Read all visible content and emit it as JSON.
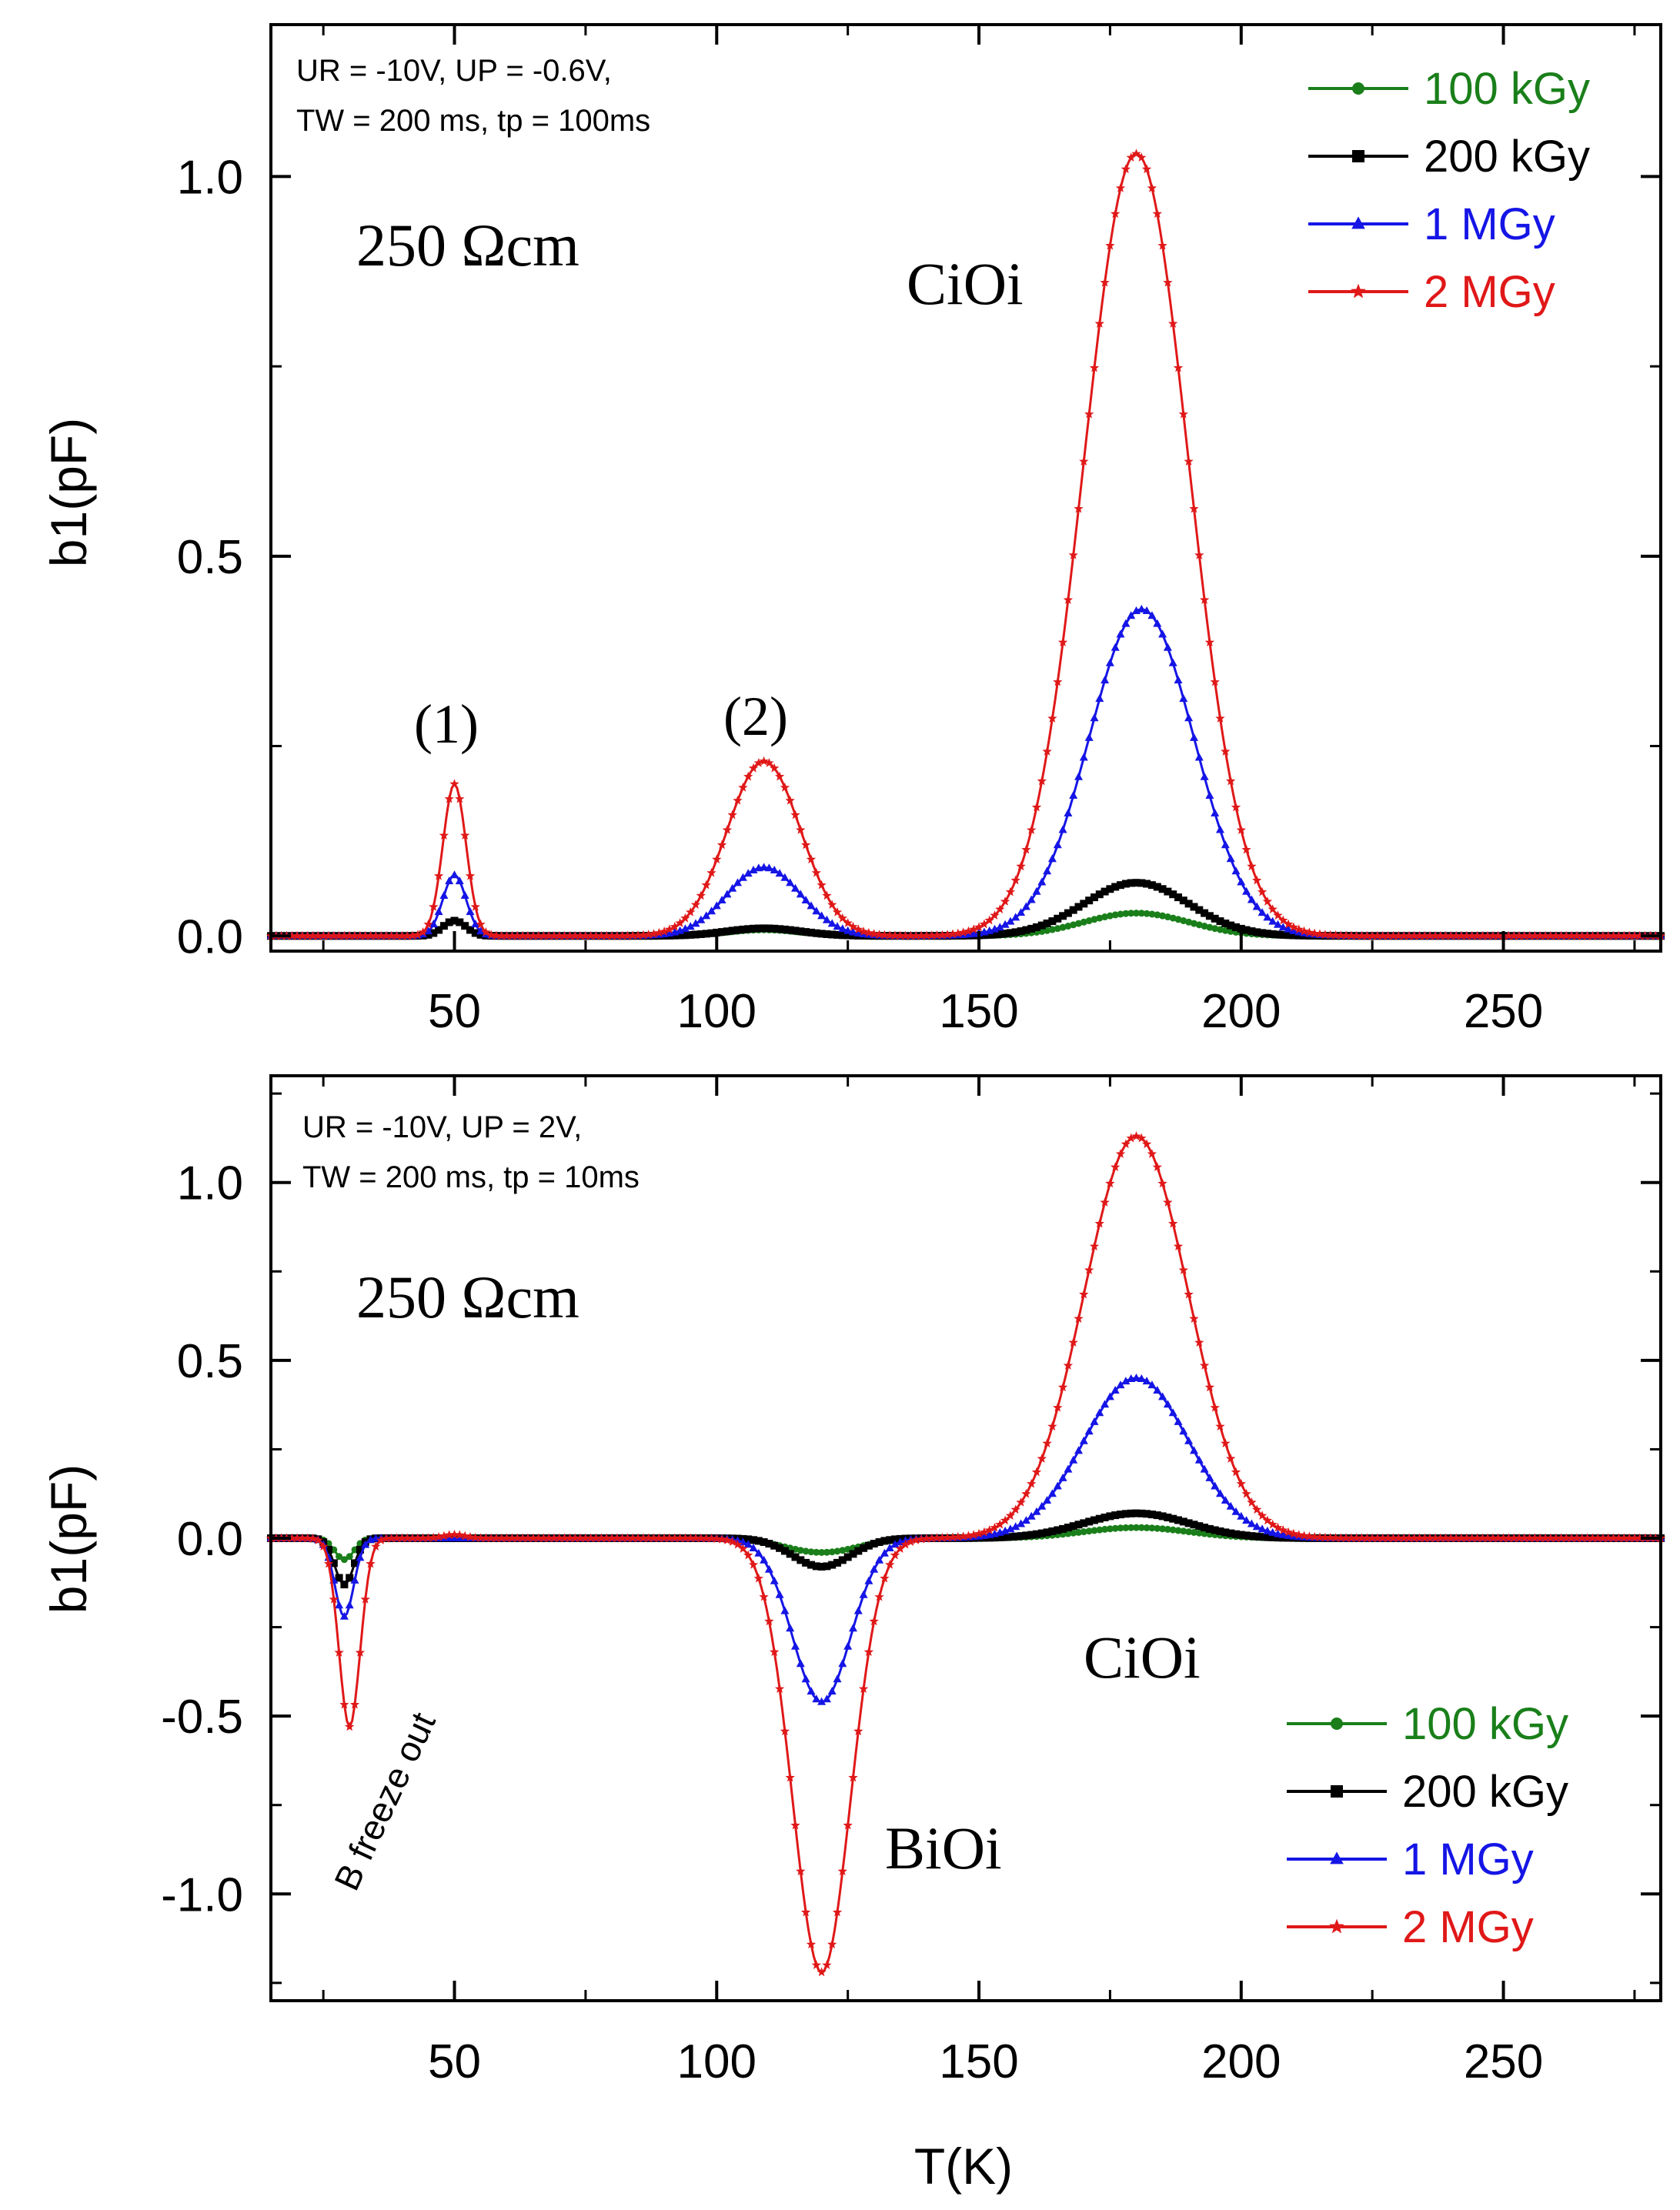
{
  "chart_data": [
    {
      "type": "line",
      "title": "",
      "xlabel": "",
      "ylabel": "b1(pF)",
      "xlim": [
        15,
        280
      ],
      "ylim": [
        -0.02,
        1.2
      ],
      "xticks": [
        50,
        100,
        150,
        200,
        250
      ],
      "xtick_labels": [
        "50",
        "100",
        "150",
        "200",
        "250"
      ],
      "yticks": [
        0.0,
        0.5,
        1.0
      ],
      "ytick_labels": [
        "0.0",
        "0.5",
        "1.0"
      ],
      "conditions": [
        "UR = -10V, UP = -0.6V,",
        "TW = 200 ms, tp = 100ms"
      ],
      "annotations": {
        "resistivity": "250 Ωcm",
        "peak_1": "(1)",
        "peak_2": "(2)",
        "cioi": "CiOi"
      },
      "legend_position": "top-right",
      "series": [
        {
          "name": "100 kGy",
          "color": "#1a7f1a",
          "marker": "circle",
          "peaks": [
            {
              "center": 50,
              "amp": 0.02,
              "sigma": 2.2
            },
            {
              "center": 109,
              "amp": 0.008,
              "sigma": 7
            },
            {
              "center": 180,
              "amp": 0.03,
              "sigma": 10
            }
          ]
        },
        {
          "name": "200 kGy",
          "color": "#000000",
          "marker": "square",
          "peaks": [
            {
              "center": 50,
              "amp": 0.02,
              "sigma": 2.2
            },
            {
              "center": 109,
              "amp": 0.01,
              "sigma": 7
            },
            {
              "center": 180,
              "amp": 0.07,
              "sigma": 10
            }
          ]
        },
        {
          "name": "1 MGy",
          "color": "#1515e6",
          "marker": "triangle",
          "peaks": [
            {
              "center": 50,
              "amp": 0.08,
              "sigma": 2.2
            },
            {
              "center": 109,
              "amp": 0.09,
              "sigma": 7
            },
            {
              "center": 181,
              "amp": 0.43,
              "sigma": 10
            }
          ]
        },
        {
          "name": "2 MGy",
          "color": "#e01818",
          "marker": "star",
          "peaks": [
            {
              "center": 50,
              "amp": 0.2,
              "sigma": 2.2
            },
            {
              "center": 109,
              "amp": 0.23,
              "sigma": 7
            },
            {
              "center": 180,
              "amp": 1.03,
              "sigma": 10
            }
          ]
        }
      ]
    },
    {
      "type": "line",
      "title": "",
      "xlabel": "T(K)",
      "ylabel": "b1(pF)",
      "xlim": [
        15,
        280
      ],
      "ylim": [
        -1.3,
        1.3
      ],
      "xticks": [
        50,
        100,
        150,
        200,
        250
      ],
      "xtick_labels": [
        "50",
        "100",
        "150",
        "200",
        "250"
      ],
      "yticks": [
        -1.0,
        -0.5,
        0.0,
        0.5,
        1.0
      ],
      "ytick_labels": [
        "-1.0",
        "-0.5",
        "0.0",
        "0.5",
        "1.0"
      ],
      "conditions": [
        "UR = -10V, UP = 2V,",
        "TW = 200 ms, tp = 10ms"
      ],
      "annotations": {
        "resistivity": "250 Ωcm",
        "cioi": "CiOi",
        "bioi": "BiOi",
        "b_freeze": "B freeze out"
      },
      "legend_position": "bottom-right",
      "series": [
        {
          "name": "100 kGy",
          "color": "#1a7f1a",
          "marker": "circle",
          "peaks": [
            {
              "center": 29,
              "amp": -0.06,
              "sigma": 1.8
            },
            {
              "center": 50,
              "amp": 0.0,
              "sigma": 2
            },
            {
              "center": 120,
              "amp": -0.04,
              "sigma": 7
            },
            {
              "center": 180,
              "amp": 0.03,
              "sigma": 10
            }
          ]
        },
        {
          "name": "200 kGy",
          "color": "#000000",
          "marker": "square",
          "peaks": [
            {
              "center": 29,
              "amp": -0.13,
              "sigma": 1.8
            },
            {
              "center": 120,
              "amp": -0.08,
              "sigma": 5.5
            },
            {
              "center": 180,
              "amp": 0.07,
              "sigma": 10
            }
          ]
        },
        {
          "name": "1 MGy",
          "color": "#1515e6",
          "marker": "triangle",
          "peaks": [
            {
              "center": 29,
              "amp": -0.22,
              "sigma": 1.8
            },
            {
              "center": 120,
              "amp": -0.46,
              "sigma": 5.5
            },
            {
              "center": 180,
              "amp": 0.45,
              "sigma": 10
            }
          ]
        },
        {
          "name": "2 MGy",
          "color": "#e01818",
          "marker": "star",
          "peaks": [
            {
              "center": 30,
              "amp": -0.53,
              "sigma": 2.0
            },
            {
              "center": 50,
              "amp": 0.01,
              "sigma": 2
            },
            {
              "center": 120,
              "amp": -1.22,
              "sigma": 5.5
            },
            {
              "center": 180,
              "amp": 1.13,
              "sigma": 10
            }
          ]
        }
      ]
    }
  ]
}
